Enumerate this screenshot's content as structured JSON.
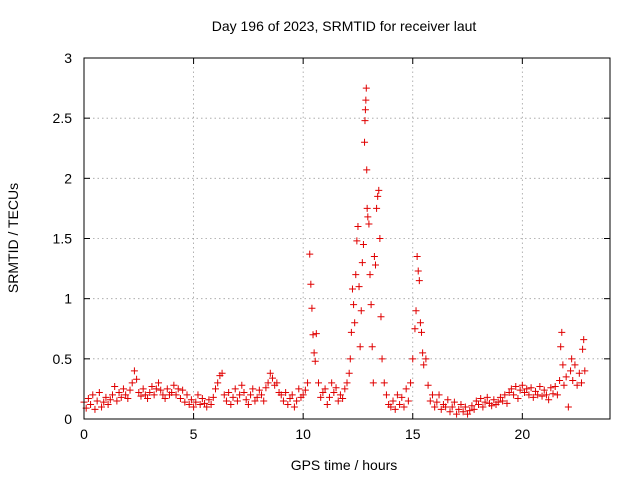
{
  "chart_data": {
    "type": "scatter",
    "title": "Day 196 of 2023, SRMTID for receiver laut",
    "xlabel": "GPS time / hours",
    "ylabel": "SRMTID / TECUs",
    "xlim": [
      0,
      24
    ],
    "ylim": [
      0,
      3
    ],
    "x_ticks": [
      0,
      5,
      10,
      15,
      20
    ],
    "y_ticks": [
      0,
      0.5,
      1,
      1.5,
      2,
      2.5,
      3
    ],
    "x_tick_labels": [
      "0",
      "5",
      "10",
      "15",
      "20"
    ],
    "y_tick_labels": [
      "0",
      "0.5",
      "1",
      "1.5",
      "2",
      "2.5",
      "3"
    ],
    "grid": true,
    "marker": "+",
    "colors": {
      "series": "#e00000",
      "grid": "#a0a0a0",
      "frame": "#000000"
    },
    "series": [
      {
        "name": "laut",
        "points": [
          [
            0.0,
            0.14
          ],
          [
            0.1,
            0.09
          ],
          [
            0.2,
            0.17
          ],
          [
            0.3,
            0.12
          ],
          [
            0.4,
            0.2
          ],
          [
            0.5,
            0.08
          ],
          [
            0.6,
            0.15
          ],
          [
            0.7,
            0.22
          ],
          [
            0.8,
            0.1
          ],
          [
            0.9,
            0.14
          ],
          [
            1.0,
            0.18
          ],
          [
            1.1,
            0.12
          ],
          [
            1.2,
            0.16
          ],
          [
            1.3,
            0.2
          ],
          [
            1.4,
            0.27
          ],
          [
            1.5,
            0.15
          ],
          [
            1.6,
            0.22
          ],
          [
            1.7,
            0.18
          ],
          [
            1.8,
            0.25
          ],
          [
            1.9,
            0.2
          ],
          [
            2.0,
            0.17
          ],
          [
            2.1,
            0.24
          ],
          [
            2.2,
            0.3
          ],
          [
            2.3,
            0.4
          ],
          [
            2.4,
            0.33
          ],
          [
            2.5,
            0.22
          ],
          [
            2.6,
            0.19
          ],
          [
            2.7,
            0.25
          ],
          [
            2.8,
            0.2
          ],
          [
            2.9,
            0.17
          ],
          [
            3.0,
            0.22
          ],
          [
            3.1,
            0.27
          ],
          [
            3.2,
            0.2
          ],
          [
            3.3,
            0.25
          ],
          [
            3.4,
            0.3
          ],
          [
            3.5,
            0.24
          ],
          [
            3.6,
            0.2
          ],
          [
            3.7,
            0.17
          ],
          [
            3.8,
            0.25
          ],
          [
            3.9,
            0.2
          ],
          [
            4.0,
            0.22
          ],
          [
            4.1,
            0.28
          ],
          [
            4.2,
            0.2
          ],
          [
            4.3,
            0.25
          ],
          [
            4.4,
            0.17
          ],
          [
            4.5,
            0.24
          ],
          [
            4.6,
            0.14
          ],
          [
            4.7,
            0.2
          ],
          [
            4.8,
            0.12
          ],
          [
            4.9,
            0.16
          ],
          [
            5.0,
            0.1
          ],
          [
            5.1,
            0.14
          ],
          [
            5.2,
            0.2
          ],
          [
            5.3,
            0.12
          ],
          [
            5.4,
            0.17
          ],
          [
            5.5,
            0.13
          ],
          [
            5.6,
            0.1
          ],
          [
            5.7,
            0.16
          ],
          [
            5.8,
            0.12
          ],
          [
            5.9,
            0.18
          ],
          [
            6.0,
            0.25
          ],
          [
            6.1,
            0.3
          ],
          [
            6.2,
            0.36
          ],
          [
            6.3,
            0.38
          ],
          [
            6.4,
            0.2
          ],
          [
            6.5,
            0.15
          ],
          [
            6.6,
            0.22
          ],
          [
            6.7,
            0.12
          ],
          [
            6.8,
            0.18
          ],
          [
            6.9,
            0.25
          ],
          [
            7.0,
            0.15
          ],
          [
            7.1,
            0.2
          ],
          [
            7.2,
            0.28
          ],
          [
            7.3,
            0.22
          ],
          [
            7.4,
            0.16
          ],
          [
            7.5,
            0.12
          ],
          [
            7.6,
            0.2
          ],
          [
            7.7,
            0.25
          ],
          [
            7.8,
            0.15
          ],
          [
            7.9,
            0.18
          ],
          [
            8.0,
            0.24
          ],
          [
            8.1,
            0.2
          ],
          [
            8.2,
            0.15
          ],
          [
            8.3,
            0.26
          ],
          [
            8.4,
            0.3
          ],
          [
            8.5,
            0.38
          ],
          [
            8.6,
            0.34
          ],
          [
            8.7,
            0.28
          ],
          [
            8.8,
            0.3
          ],
          [
            8.9,
            0.22
          ],
          [
            9.0,
            0.2
          ],
          [
            9.1,
            0.15
          ],
          [
            9.2,
            0.22
          ],
          [
            9.3,
            0.12
          ],
          [
            9.4,
            0.17
          ],
          [
            9.5,
            0.2
          ],
          [
            9.6,
            0.1
          ],
          [
            9.7,
            0.15
          ],
          [
            9.8,
            0.25
          ],
          [
            9.9,
            0.18
          ],
          [
            10.0,
            0.2
          ],
          [
            10.1,
            0.24
          ],
          [
            10.2,
            0.3
          ],
          [
            10.3,
            1.37
          ],
          [
            10.35,
            1.12
          ],
          [
            10.4,
            0.92
          ],
          [
            10.45,
            0.7
          ],
          [
            10.5,
            0.55
          ],
          [
            10.55,
            0.48
          ],
          [
            10.6,
            0.71
          ],
          [
            10.7,
            0.3
          ],
          [
            10.8,
            0.18
          ],
          [
            10.9,
            0.22
          ],
          [
            11.0,
            0.25
          ],
          [
            11.1,
            0.12
          ],
          [
            11.2,
            0.18
          ],
          [
            11.3,
            0.3
          ],
          [
            11.4,
            0.22
          ],
          [
            11.5,
            0.26
          ],
          [
            11.6,
            0.15
          ],
          [
            11.7,
            0.2
          ],
          [
            11.8,
            0.17
          ],
          [
            11.9,
            0.25
          ],
          [
            12.0,
            0.3
          ],
          [
            12.1,
            0.38
          ],
          [
            12.15,
            0.5
          ],
          [
            12.2,
            0.72
          ],
          [
            12.25,
            1.08
          ],
          [
            12.3,
            0.95
          ],
          [
            12.35,
            0.8
          ],
          [
            12.4,
            1.2
          ],
          [
            12.45,
            1.48
          ],
          [
            12.5,
            1.6
          ],
          [
            12.55,
            1.1
          ],
          [
            12.6,
            0.6
          ],
          [
            12.65,
            0.9
          ],
          [
            12.7,
            1.3
          ],
          [
            12.75,
            1.45
          ],
          [
            12.8,
            2.3
          ],
          [
            12.82,
            2.48
          ],
          [
            12.84,
            2.57
          ],
          [
            12.86,
            2.65
          ],
          [
            12.88,
            2.75
          ],
          [
            12.9,
            2.07
          ],
          [
            12.92,
            1.75
          ],
          [
            12.95,
            1.68
          ],
          [
            13.0,
            1.62
          ],
          [
            13.05,
            1.2
          ],
          [
            13.1,
            0.95
          ],
          [
            13.15,
            0.6
          ],
          [
            13.2,
            0.3
          ],
          [
            13.25,
            1.35
          ],
          [
            13.3,
            1.28
          ],
          [
            13.35,
            1.75
          ],
          [
            13.4,
            1.85
          ],
          [
            13.45,
            1.9
          ],
          [
            13.5,
            1.5
          ],
          [
            13.55,
            0.85
          ],
          [
            13.6,
            0.5
          ],
          [
            13.7,
            0.3
          ],
          [
            13.8,
            0.2
          ],
          [
            13.9,
            0.12
          ],
          [
            14.0,
            0.1
          ],
          [
            14.1,
            0.15
          ],
          [
            14.2,
            0.08
          ],
          [
            14.3,
            0.2
          ],
          [
            14.4,
            0.12
          ],
          [
            14.5,
            0.18
          ],
          [
            14.6,
            0.1
          ],
          [
            14.7,
            0.25
          ],
          [
            14.8,
            0.15
          ],
          [
            14.9,
            0.3
          ],
          [
            15.0,
            0.5
          ],
          [
            15.1,
            0.75
          ],
          [
            15.15,
            0.9
          ],
          [
            15.2,
            1.35
          ],
          [
            15.25,
            1.23
          ],
          [
            15.3,
            1.15
          ],
          [
            15.35,
            0.8
          ],
          [
            15.4,
            0.72
          ],
          [
            15.45,
            0.55
          ],
          [
            15.5,
            0.45
          ],
          [
            15.6,
            0.5
          ],
          [
            15.7,
            0.28
          ],
          [
            15.8,
            0.15
          ],
          [
            15.9,
            0.2
          ],
          [
            16.0,
            0.1
          ],
          [
            16.1,
            0.14
          ],
          [
            16.2,
            0.2
          ],
          [
            16.3,
            0.08
          ],
          [
            16.4,
            0.12
          ],
          [
            16.5,
            0.1
          ],
          [
            16.6,
            0.16
          ],
          [
            16.7,
            0.06
          ],
          [
            16.8,
            0.1
          ],
          [
            16.9,
            0.14
          ],
          [
            17.0,
            0.04
          ],
          [
            17.1,
            0.08
          ],
          [
            17.2,
            0.12
          ],
          [
            17.3,
            0.06
          ],
          [
            17.4,
            0.1
          ],
          [
            17.5,
            0.04
          ],
          [
            17.6,
            0.07
          ],
          [
            17.7,
            0.11
          ],
          [
            17.8,
            0.08
          ],
          [
            17.9,
            0.15
          ],
          [
            18.0,
            0.12
          ],
          [
            18.1,
            0.17
          ],
          [
            18.2,
            0.1
          ],
          [
            18.3,
            0.14
          ],
          [
            18.4,
            0.18
          ],
          [
            18.5,
            0.13
          ],
          [
            18.6,
            0.11
          ],
          [
            18.7,
            0.16
          ],
          [
            18.8,
            0.12
          ],
          [
            18.9,
            0.14
          ],
          [
            19.0,
            0.18
          ],
          [
            19.1,
            0.15
          ],
          [
            19.2,
            0.2
          ],
          [
            19.3,
            0.13
          ],
          [
            19.4,
            0.22
          ],
          [
            19.5,
            0.25
          ],
          [
            19.6,
            0.2
          ],
          [
            19.7,
            0.27
          ],
          [
            19.8,
            0.17
          ],
          [
            19.9,
            0.24
          ],
          [
            20.0,
            0.28
          ],
          [
            20.1,
            0.22
          ],
          [
            20.2,
            0.25
          ],
          [
            20.3,
            0.2
          ],
          [
            20.4,
            0.26
          ],
          [
            20.5,
            0.18
          ],
          [
            20.6,
            0.23
          ],
          [
            20.7,
            0.2
          ],
          [
            20.8,
            0.27
          ],
          [
            20.9,
            0.19
          ],
          [
            21.0,
            0.24
          ],
          [
            21.1,
            0.2
          ],
          [
            21.2,
            0.16
          ],
          [
            21.3,
            0.26
          ],
          [
            21.4,
            0.21
          ],
          [
            21.5,
            0.27
          ],
          [
            21.6,
            0.2
          ],
          [
            21.7,
            0.32
          ],
          [
            21.75,
            0.6
          ],
          [
            21.8,
            0.72
          ],
          [
            21.85,
            0.45
          ],
          [
            21.9,
            0.28
          ],
          [
            22.0,
            0.35
          ],
          [
            22.1,
            0.1
          ],
          [
            22.2,
            0.4
          ],
          [
            22.25,
            0.5
          ],
          [
            22.3,
            0.32
          ],
          [
            22.4,
            0.45
          ],
          [
            22.5,
            0.28
          ],
          [
            22.6,
            0.38
          ],
          [
            22.7,
            0.3
          ],
          [
            22.75,
            0.58
          ],
          [
            22.8,
            0.66
          ],
          [
            22.85,
            0.4
          ]
        ]
      }
    ]
  }
}
